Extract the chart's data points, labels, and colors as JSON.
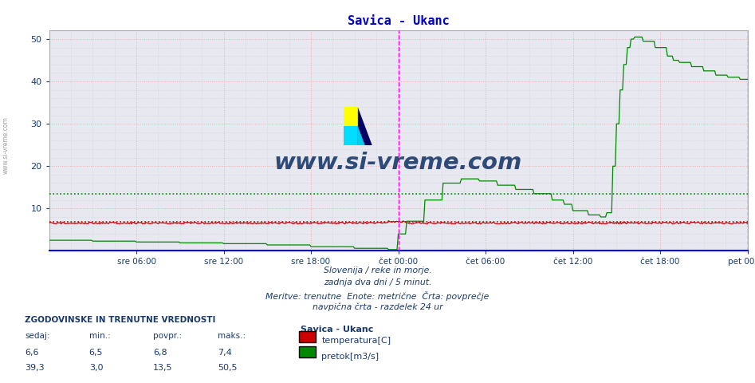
{
  "title": "Savica - Ukanc",
  "title_color": "#0000cc",
  "bg_color": "#ffffff",
  "plot_bg_color": "#e8e8f0",
  "grid_color_major": "#ffaaaa",
  "grid_color_minor": "#ccccdd",
  "ylim": [
    0,
    52
  ],
  "yticks": [
    10,
    20,
    30,
    40,
    50
  ],
  "xlim": [
    0,
    576
  ],
  "xtick_positions": [
    72,
    144,
    216,
    288,
    360,
    432,
    504,
    576
  ],
  "xtick_labels": [
    "sre 06:00",
    "sre 12:00",
    "sre 18:00",
    "čet 00:00",
    "čet 06:00",
    "čet 12:00",
    "čet 18:00",
    "pet 00:00"
  ],
  "vline_positions": [
    288,
    576
  ],
  "vline_color": "#ff00ff",
  "temp_color": "#cc0000",
  "flow_color": "#008800",
  "temp_avg": 6.8,
  "flow_avg": 13.5,
  "watermark": "www.si-vreme.com",
  "watermark_color": "#1a3a6b",
  "footer_lines": [
    "Slovenija / reke in morje.",
    "zadnja dva dni / 5 minut.",
    "Meritve: trenutne  Enote: metrične  Črta: povprečje",
    "navpična črta - razdelek 24 ur"
  ],
  "footer_color": "#1a3a6b",
  "label_color": "#1a3a6b",
  "stats_header": "ZGODOVINSKE IN TRENUTNE VREDNOSTI",
  "stats_labels": [
    "sedaj:",
    "min.:",
    "povpr.:",
    "maks.:"
  ],
  "stats_temp": [
    "6,6",
    "6,5",
    "6,8",
    "7,4"
  ],
  "stats_flow": [
    "39,3",
    "3,0",
    "13,5",
    "50,5"
  ],
  "station_name": "Savica - Ukanc",
  "legend_temp": "temperatura[C]",
  "legend_flow": "pretok[m3/s]",
  "axis_color": "#0000cc",
  "bottom_border_color": "#0000ff"
}
